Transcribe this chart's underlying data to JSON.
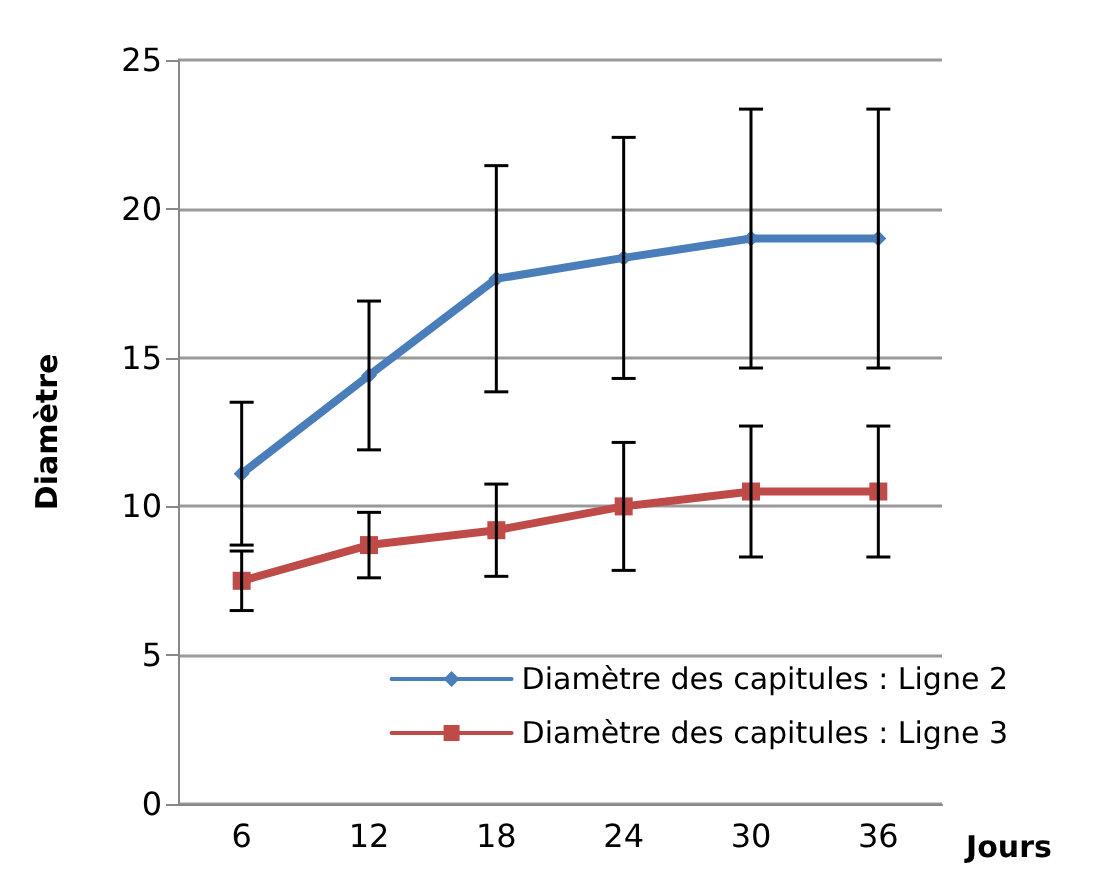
{
  "chart_data": {
    "type": "line",
    "xlabel": "Jours",
    "ylabel": "Diamètre",
    "categories": [
      "6",
      "12",
      "18",
      "24",
      "30",
      "36"
    ],
    "ylim": [
      0,
      25
    ],
    "yticks": [
      0,
      5,
      10,
      15,
      20,
      25
    ],
    "grid": "y",
    "legend": "bottom right",
    "series": [
      {
        "name": "Diamètre des capitules : Ligne 2",
        "color": "#4a7ebb",
        "marker": "diamond",
        "values": [
          11.1,
          14.4,
          17.65,
          18.35,
          19.0,
          19.0
        ],
        "errors": [
          2.4,
          2.5,
          3.8,
          4.05,
          4.35,
          4.35
        ]
      },
      {
        "name": "Diamètre des capitules : Ligne 3",
        "color": "#be4b48",
        "marker": "square",
        "values": [
          7.5,
          8.7,
          9.2,
          10.0,
          10.5,
          10.5
        ],
        "errors": [
          1.0,
          1.1,
          1.55,
          2.15,
          2.2,
          2.2
        ]
      }
    ]
  }
}
